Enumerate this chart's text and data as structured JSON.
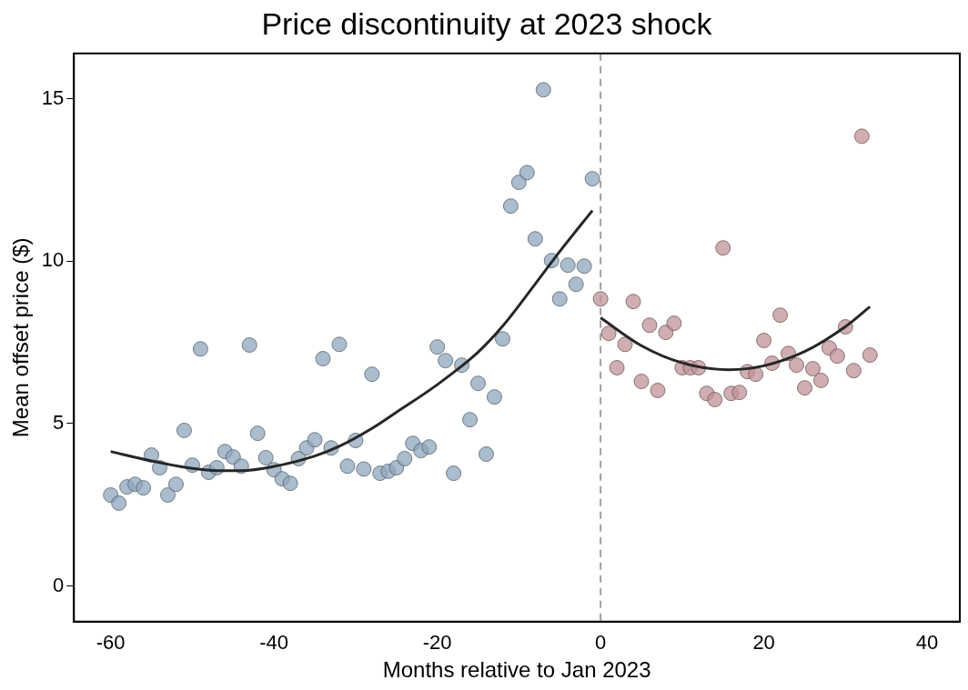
{
  "chart_data": {
    "type": "scatter",
    "title": "Price discontinuity at 2023 shock",
    "xlabel": "Months relative to Jan 2023",
    "ylabel": "Mean offset price ($)",
    "xlim": [
      -64.5,
      44
    ],
    "ylim": [
      -1.1,
      16.4
    ],
    "xticks": [
      -60,
      -40,
      -20,
      0,
      20,
      40
    ],
    "yticks": [
      0,
      5,
      10,
      15
    ],
    "grid": false,
    "legend": false,
    "marker": "circle",
    "series": [
      {
        "color": "#8fa5bc",
        "x": [
          -60,
          -59,
          -58,
          -57,
          -56,
          -55,
          -54,
          -53,
          -52,
          -51,
          -50,
          -49,
          -48,
          -47,
          -46,
          -45,
          -44,
          -43,
          -42,
          -41,
          -40,
          -39,
          -38,
          -37,
          -36,
          -35,
          -34,
          -33,
          -32,
          -31,
          -30,
          -29,
          -28,
          -27,
          -26,
          -25,
          -24,
          -23,
          -22,
          -21,
          -20,
          -19,
          -18,
          -17,
          -16,
          -15,
          -14,
          -13,
          -12,
          -11,
          -10,
          -9,
          -8,
          -7,
          -6,
          -5,
          -4,
          -3,
          -2,
          -1
        ],
        "values": [
          2.8,
          2.55,
          3.05,
          3.13,
          3.02,
          4.03,
          3.64,
          2.8,
          3.13,
          4.79,
          3.72,
          7.3,
          3.5,
          3.64,
          4.14,
          3.97,
          3.69,
          7.42,
          4.7,
          3.95,
          3.58,
          3.3,
          3.16,
          3.92,
          4.25,
          4.5,
          7.0,
          4.25,
          7.44,
          3.69,
          4.48,
          3.6,
          6.52,
          3.47,
          3.53,
          3.64,
          3.92,
          4.39,
          4.17,
          4.28,
          7.36,
          6.94,
          3.47,
          6.8,
          5.12,
          6.24,
          4.06,
          5.82,
          7.61,
          11.7,
          12.43,
          12.73,
          10.69,
          15.28,
          10.02,
          8.84,
          9.88,
          9.29,
          9.85,
          12.54
        ]
      },
      {
        "color": "#bf9297",
        "x": [
          0,
          1,
          2,
          3,
          4,
          5,
          6,
          7,
          8,
          9,
          10,
          11,
          12,
          13,
          14,
          15,
          16,
          17,
          18,
          19,
          20,
          21,
          22,
          23,
          24,
          25,
          26,
          27,
          28,
          29,
          30,
          31,
          32,
          33
        ],
        "values": [
          8.84,
          7.78,
          6.72,
          7.44,
          8.76,
          6.3,
          8.03,
          6.02,
          7.81,
          8.09,
          6.72,
          6.72,
          6.72,
          5.93,
          5.74,
          10.41,
          5.93,
          5.96,
          6.6,
          6.52,
          7.56,
          6.86,
          8.34,
          7.16,
          6.8,
          6.1,
          6.69,
          6.33,
          7.33,
          7.08,
          7.98,
          6.63,
          13.85,
          7.11
        ]
      },
      {
        "type": "line",
        "color": "#262626",
        "marker": "none",
        "line_style": "solid",
        "x": [
          -60,
          -55,
          -50,
          -47,
          -44,
          -40,
          -35,
          -32,
          -28,
          -25,
          -20,
          -15,
          -12,
          -8,
          -5,
          -1
        ],
        "values": [
          4.14,
          3.85,
          3.62,
          3.55,
          3.55,
          3.68,
          4.0,
          4.3,
          4.85,
          5.35,
          6.2,
          7.2,
          8.0,
          9.3,
          10.3,
          11.56
        ]
      },
      {
        "type": "line",
        "color": "#262626",
        "marker": "none",
        "line_style": "solid",
        "x": [
          0,
          5,
          10,
          15.7,
          20,
          25,
          30,
          33
        ],
        "values": [
          8.26,
          7.4,
          6.87,
          6.66,
          6.78,
          7.22,
          7.99,
          8.6
        ]
      }
    ],
    "ref_lines": [
      {
        "axis": "x",
        "value": 0,
        "color": "#a0a0a0",
        "line_style": "dashed"
      }
    ]
  }
}
